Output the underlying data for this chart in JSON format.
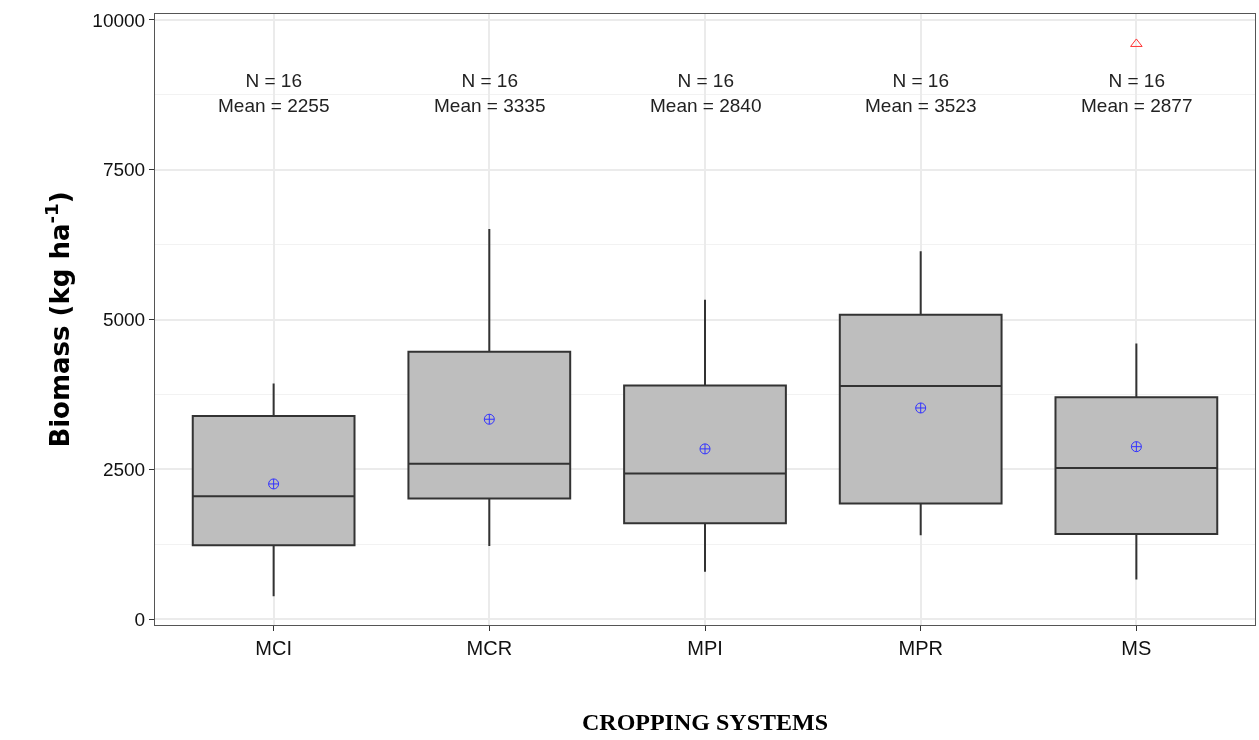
{
  "chart_data": {
    "type": "box",
    "xlabel": "CROPPING SYSTEMS",
    "ylabel": "Biomass (kg ha$^{-1}$)",
    "categories": [
      "MCI",
      "MCR",
      "MPI",
      "MPR",
      "MS"
    ],
    "boxes": [
      {
        "low": 380,
        "q1": 1230,
        "median": 2050,
        "q3": 3390,
        "high": 3930,
        "mean": 2255
      },
      {
        "low": 1220,
        "q1": 2010,
        "median": 2590,
        "q3": 4460,
        "high": 6510,
        "mean": 3335
      },
      {
        "low": 790,
        "q1": 1600,
        "median": 2430,
        "q3": 3900,
        "high": 5330,
        "mean": 2840
      },
      {
        "low": 1400,
        "q1": 1930,
        "median": 3890,
        "q3": 5080,
        "high": 6140,
        "mean": 3523
      },
      {
        "low": 660,
        "q1": 1420,
        "median": 2520,
        "q3": 3700,
        "high": 4600,
        "mean": 2877,
        "outliers": [
          9600
        ]
      }
    ],
    "color": "#bebebe",
    "ylim": [
      -100,
      10100
    ],
    "yticks": [
      0,
      2500,
      5000,
      7500,
      10000
    ],
    "grid": true,
    "annotations": [
      "N = 16\nMean = 2255",
      "N = 16\nMean = 3335",
      "N = 16\nMean = 2840",
      "N = 16\nMean = 3523",
      "N = 16\nMean = 2877"
    ]
  }
}
